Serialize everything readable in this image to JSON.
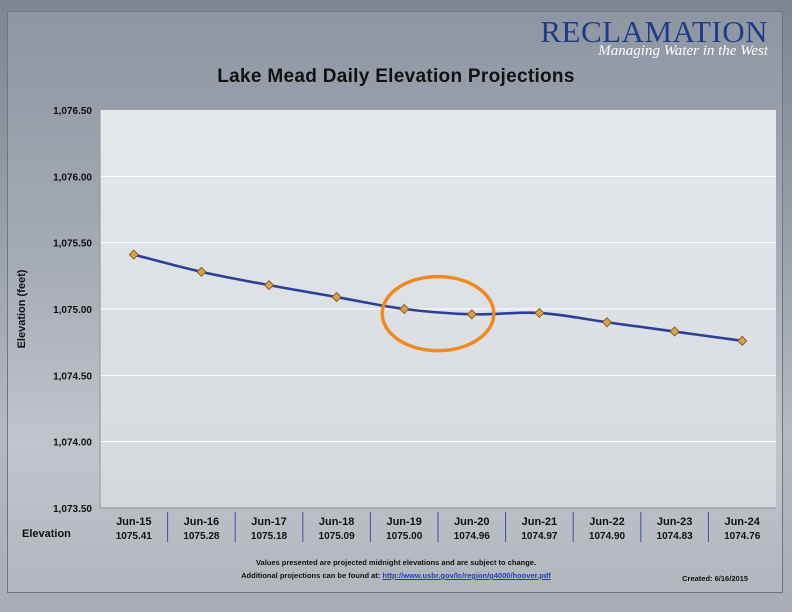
{
  "header": {
    "brand_name": "RECLAMATION",
    "brand_tagline": "Managing Water in the West"
  },
  "footer": {
    "note_line1": "Values presented are projected midnight elevations and are subject to change.",
    "note_line2_prefix": "Additional projections can be found at: ",
    "note_link": "http://www.usbr.gov/lc/region/g4000/hoover.pdf",
    "created": "Created: 6/16/2015"
  },
  "chart_data": {
    "type": "line",
    "title": "Lake Mead Daily Elevation Projections",
    "ylabel": "Elevation (feet)",
    "xlabel": "",
    "row_label": "Elevation",
    "categories": [
      "Jun-15",
      "Jun-16",
      "Jun-17",
      "Jun-18",
      "Jun-19",
      "Jun-20",
      "Jun-21",
      "Jun-22",
      "Jun-23",
      "Jun-24"
    ],
    "series": [
      {
        "values": [
          1075.41,
          1075.28,
          1075.18,
          1075.09,
          1075.0,
          1074.96,
          1074.97,
          1074.9,
          1074.83,
          1074.76
        ],
        "value_labels": [
          "1075.41",
          "1075.28",
          "1075.18",
          "1075.09",
          "1075.00",
          "1074.96",
          "1074.97",
          "1074.90",
          "1074.83",
          "1074.76"
        ]
      }
    ],
    "ylim": [
      1073.5,
      1076.5
    ],
    "yticks": [
      1073.5,
      1074.0,
      1074.5,
      1075.0,
      1075.5,
      1076.0,
      1076.5
    ],
    "ytick_labels": [
      "1,073.50",
      "1,074.00",
      "1,074.50",
      "1,075.00",
      "1,075.50",
      "1,076.00",
      "1,076.50"
    ],
    "grid": true,
    "legend": "none",
    "annotation": {
      "type": "ellipse-highlight",
      "categories": [
        "Jun-19",
        "Jun-20"
      ],
      "color": "#f08a1e"
    },
    "colors": {
      "line": "#2a3f9a",
      "marker": "#d9a04a",
      "marker_edge": "#7a4e12"
    }
  }
}
